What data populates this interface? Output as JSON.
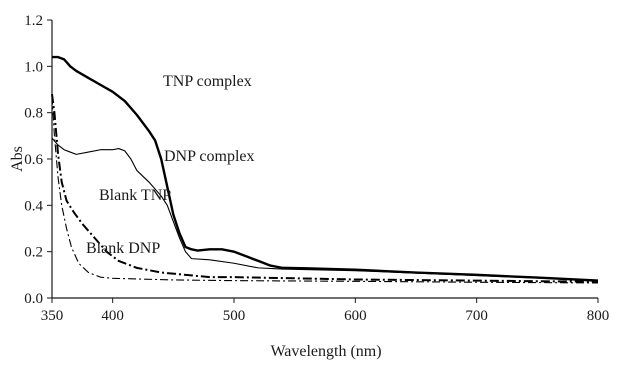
{
  "chart_data": {
    "type": "line",
    "title": "",
    "xlabel": "Wavelength (nm)",
    "ylabel": "Abs",
    "xlim": [
      350,
      800
    ],
    "ylim": [
      0,
      1.2
    ],
    "x_ticks": [
      350,
      400,
      500,
      600,
      700,
      800
    ],
    "y_ticks": [
      "0.0",
      "0.2",
      "0.4",
      "0.6",
      "0.8",
      "1.0",
      "1.2"
    ],
    "grid": false,
    "legend": "none",
    "annotations": [
      "TNP complex",
      "DNP complex",
      "Blank TNP",
      "Blank DNP"
    ],
    "series": [
      {
        "name": "TNP complex",
        "line_style": "solid-thick",
        "color": "#000000",
        "points": [
          [
            350,
            1.04
          ],
          [
            355,
            1.04
          ],
          [
            360,
            1.03
          ],
          [
            365,
            1.0
          ],
          [
            370,
            0.98
          ],
          [
            380,
            0.95
          ],
          [
            390,
            0.92
          ],
          [
            400,
            0.89
          ],
          [
            410,
            0.85
          ],
          [
            420,
            0.79
          ],
          [
            430,
            0.72
          ],
          [
            435,
            0.68
          ],
          [
            440,
            0.6
          ],
          [
            445,
            0.48
          ],
          [
            450,
            0.36
          ],
          [
            455,
            0.28
          ],
          [
            460,
            0.22
          ],
          [
            465,
            0.21
          ],
          [
            470,
            0.205
          ],
          [
            480,
            0.21
          ],
          [
            490,
            0.21
          ],
          [
            500,
            0.2
          ],
          [
            510,
            0.18
          ],
          [
            520,
            0.16
          ],
          [
            530,
            0.14
          ],
          [
            540,
            0.13
          ],
          [
            560,
            0.128
          ],
          [
            600,
            0.122
          ],
          [
            650,
            0.11
          ],
          [
            700,
            0.1
          ],
          [
            750,
            0.088
          ],
          [
            800,
            0.075
          ]
        ]
      },
      {
        "name": "DNP complex",
        "line_style": "solid-thin",
        "color": "#000000",
        "points": [
          [
            350,
            0.69
          ],
          [
            355,
            0.66
          ],
          [
            360,
            0.64
          ],
          [
            365,
            0.63
          ],
          [
            370,
            0.62
          ],
          [
            380,
            0.63
          ],
          [
            390,
            0.64
          ],
          [
            400,
            0.64
          ],
          [
            405,
            0.645
          ],
          [
            410,
            0.635
          ],
          [
            415,
            0.6
          ],
          [
            420,
            0.55
          ],
          [
            430,
            0.5
          ],
          [
            440,
            0.44
          ],
          [
            445,
            0.4
          ],
          [
            450,
            0.33
          ],
          [
            455,
            0.26
          ],
          [
            460,
            0.2
          ],
          [
            465,
            0.17
          ],
          [
            480,
            0.165
          ],
          [
            500,
            0.15
          ],
          [
            520,
            0.13
          ],
          [
            540,
            0.125
          ],
          [
            600,
            0.118
          ],
          [
            700,
            0.097
          ],
          [
            800,
            0.075
          ]
        ]
      },
      {
        "name": "Blank TNP",
        "line_style": "dash-dot-thick",
        "color": "#000000",
        "points": [
          [
            350,
            0.88
          ],
          [
            352,
            0.8
          ],
          [
            355,
            0.62
          ],
          [
            358,
            0.5
          ],
          [
            362,
            0.42
          ],
          [
            368,
            0.37
          ],
          [
            375,
            0.32
          ],
          [
            385,
            0.26
          ],
          [
            395,
            0.2
          ],
          [
            405,
            0.16
          ],
          [
            420,
            0.13
          ],
          [
            440,
            0.11
          ],
          [
            460,
            0.1
          ],
          [
            480,
            0.09
          ],
          [
            500,
            0.09
          ],
          [
            550,
            0.085
          ],
          [
            600,
            0.08
          ],
          [
            700,
            0.075
          ],
          [
            800,
            0.07
          ]
        ]
      },
      {
        "name": "Blank DNP",
        "line_style": "dash-dot-thin",
        "color": "#000000",
        "points": [
          [
            350,
            0.87
          ],
          [
            352,
            0.7
          ],
          [
            355,
            0.52
          ],
          [
            358,
            0.4
          ],
          [
            362,
            0.3
          ],
          [
            366,
            0.22
          ],
          [
            372,
            0.15
          ],
          [
            380,
            0.11
          ],
          [
            390,
            0.09
          ],
          [
            400,
            0.085
          ],
          [
            450,
            0.078
          ],
          [
            500,
            0.075
          ],
          [
            600,
            0.072
          ],
          [
            700,
            0.068
          ],
          [
            800,
            0.065
          ]
        ]
      }
    ]
  }
}
